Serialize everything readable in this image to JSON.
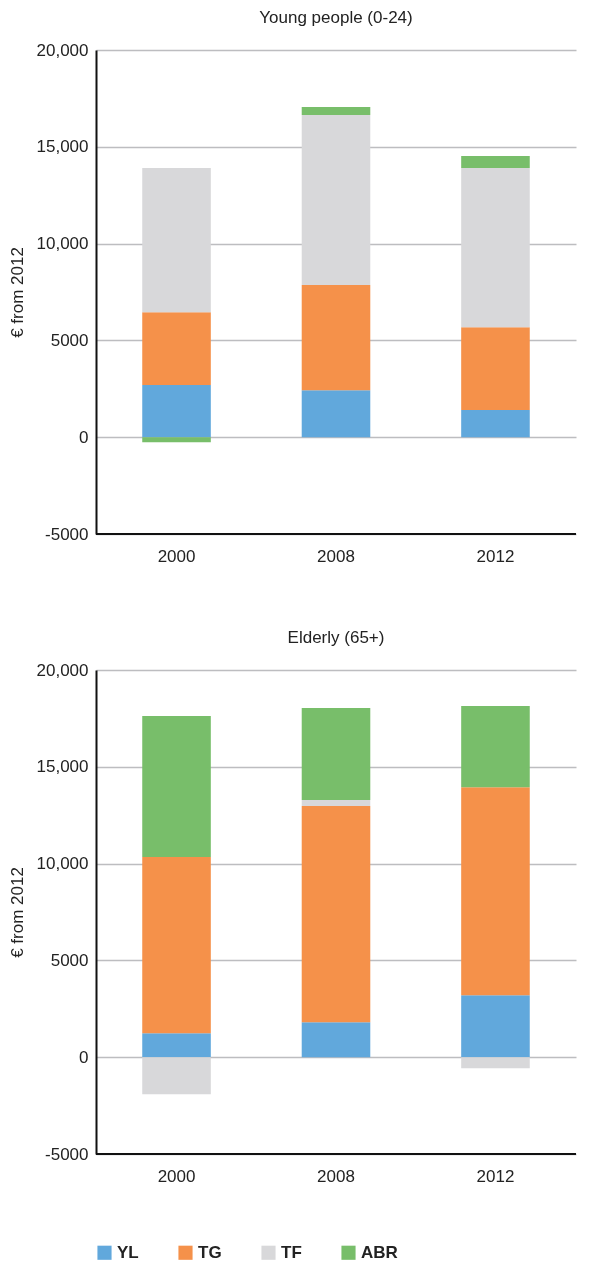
{
  "chart_data": [
    {
      "type": "bar",
      "title": "Young people (0-24)",
      "ylabel": "€ from 2012",
      "categories": [
        "2000",
        "2008",
        "2012"
      ],
      "stacked": true,
      "series": [
        {
          "color": "#61a8dc",
          "values": [
            2690,
            2430,
            1400
          ]
        },
        {
          "color": "#f5914a",
          "values": [
            3770,
            5430,
            4280
          ]
        },
        {
          "color": "#d8d8da",
          "values": [
            7440,
            8780,
            8220
          ]
        },
        {
          "color": "#78be6a",
          "values": [
            -260,
            410,
            620
          ]
        }
      ],
      "ylim": [
        -5000,
        20000
      ],
      "yticks": [
        -5000,
        0,
        5000,
        {
          "value": 10000,
          "label": "10,000"
        },
        {
          "value": 15000,
          "label": "15,000"
        },
        {
          "value": 20000,
          "label": "20,000"
        }
      ],
      "grid": "y",
      "legend": false
    },
    {
      "type": "bar",
      "title": "Elderly (65+)",
      "ylabel": "€ from 2012",
      "categories": [
        "2000",
        "2008",
        "2012"
      ],
      "stacked": true,
      "series": [
        {
          "name": "YL",
          "color": "#61a8dc",
          "values": [
            1240,
            1810,
            3200
          ]
        },
        {
          "name": "TG",
          "color": "#f5914a",
          "values": [
            9100,
            11160,
            10750
          ]
        },
        {
          "name": "TF",
          "color": "#d8d8da",
          "values": [
            -1910,
            310,
            -570
          ]
        },
        {
          "name": "ABR",
          "color": "#78be6a",
          "values": [
            7280,
            4760,
            4190
          ]
        }
      ],
      "ylim": [
        -5000,
        20000
      ],
      "yticks": [
        -5000,
        0,
        5000,
        {
          "value": 10000,
          "label": "10,000"
        },
        {
          "value": 15000,
          "label": "15,000"
        },
        {
          "value": 20000,
          "label": "20,000"
        }
      ],
      "grid": "y",
      "legend": "bottom"
    }
  ]
}
